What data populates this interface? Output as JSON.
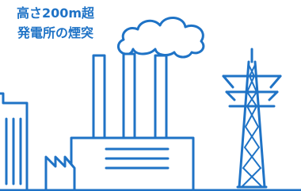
{
  "caption": {
    "line1": "高さ200m超",
    "line2": "発電所の煙突"
  }
}
